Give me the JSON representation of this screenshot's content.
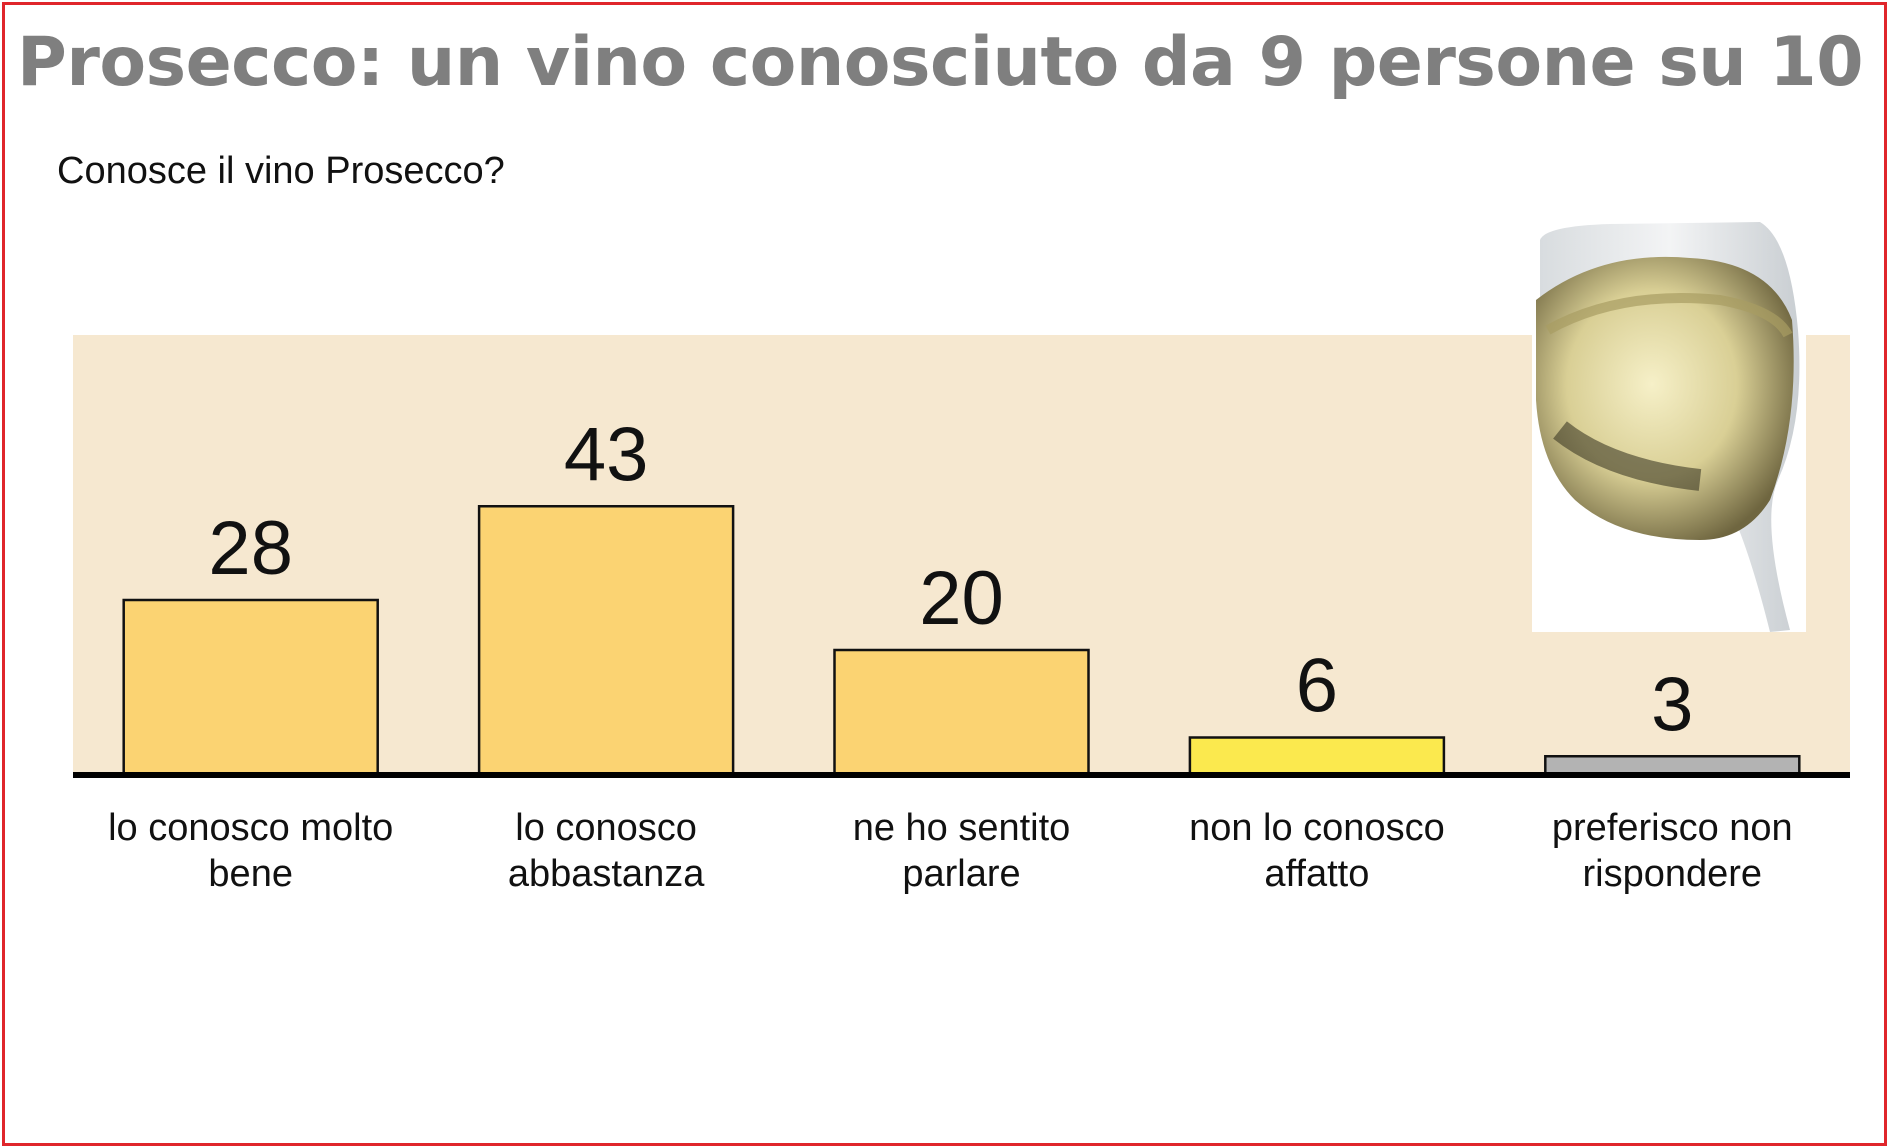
{
  "title": "Prosecco: un vino conosciuto da 9 persone su 10",
  "chart_data": {
    "type": "bar",
    "title": "Prosecco: un vino conosciuto da 9 persone su 10",
    "subtitle": "Conosce il vino Prosecco?",
    "xlabel": "",
    "ylabel": "",
    "categories": [
      [
        "lo conosco molto",
        "bene"
      ],
      [
        "lo conosco",
        "abbastanza"
      ],
      [
        "ne ho sentito",
        "parlare"
      ],
      [
        "non lo conosco",
        "affatto"
      ],
      [
        "preferisco non",
        "rispondere"
      ]
    ],
    "values": [
      28,
      43,
      20,
      6,
      3
    ],
    "bar_colors": [
      "#fbd372",
      "#fbd372",
      "#fbd372",
      "#fbe94e",
      "#b3b3b3"
    ],
    "plot_background": "#f6e8d0",
    "ylim": [
      0,
      70
    ],
    "grid": false,
    "legend": "none",
    "image": "champagne-glass"
  }
}
